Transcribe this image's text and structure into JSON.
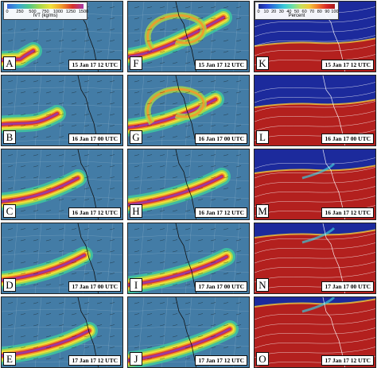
{
  "colorbars": {
    "ivt": {
      "title": "IVT (kg/ms)",
      "ticks": [
        "0",
        "250",
        "500",
        "750",
        "1000",
        "1250",
        "1500"
      ],
      "colors": [
        "#3a64d8",
        "#3aa6d8",
        "#4fc98a",
        "#a8d84a",
        "#f2e23a",
        "#f29a2a",
        "#d8302a",
        "#a83aa8"
      ]
    },
    "percent": {
      "title": "Percent",
      "ticks": [
        "0",
        "10",
        "20",
        "30",
        "40",
        "50",
        "60",
        "70",
        "80",
        "90",
        "100"
      ],
      "colors": [
        "#1a2a8c",
        "#2a4ad8",
        "#2a8ad8",
        "#3ac8d8",
        "#6ae0a8",
        "#c8e05a",
        "#f2c83a",
        "#f27a2a",
        "#d82a2a",
        "#a81a1a"
      ]
    }
  },
  "panels": [
    {
      "label": "A",
      "time": "15 Jan 17 12 UTC",
      "type": "ivt",
      "stage": 0
    },
    {
      "label": "F",
      "time": "15 Jan 17 12 UTC",
      "type": "ivt-zoom",
      "stage": 0
    },
    {
      "label": "K",
      "time": "15 Jan 17 12 UTC",
      "type": "pct",
      "stage": 0
    },
    {
      "label": "B",
      "time": "16 Jan 17 00 UTC",
      "type": "ivt",
      "stage": 1
    },
    {
      "label": "G",
      "time": "16 Jan 17 00 UTC",
      "type": "ivt-zoom",
      "stage": 1
    },
    {
      "label": "L",
      "time": "16 Jan 17 00 UTC",
      "type": "pct",
      "stage": 1
    },
    {
      "label": "C",
      "time": "16 Jan 17 12 UTC",
      "type": "ivt",
      "stage": 2
    },
    {
      "label": "H",
      "time": "16 Jan 17 12 UTC",
      "type": "ivt-zoom",
      "stage": 2
    },
    {
      "label": "M",
      "time": "16 Jan 17 12 UTC",
      "type": "pct",
      "stage": 2
    },
    {
      "label": "D",
      "time": "17 Jan 17 00 UTC",
      "type": "ivt",
      "stage": 3
    },
    {
      "label": "I",
      "time": "17 Jan 17 00 UTC",
      "type": "ivt-zoom",
      "stage": 3
    },
    {
      "label": "N",
      "time": "17 Jan 17 00 UTC",
      "type": "pct",
      "stage": 3
    },
    {
      "label": "E",
      "time": "17 Jan 17 12 UTC",
      "type": "ivt",
      "stage": 4
    },
    {
      "label": "J",
      "time": "17 Jan 17 12 UTC",
      "type": "ivt-zoom",
      "stage": 4
    },
    {
      "label": "O",
      "time": "17 Jan 17 12 UTC",
      "type": "pct",
      "stage": 4
    }
  ]
}
